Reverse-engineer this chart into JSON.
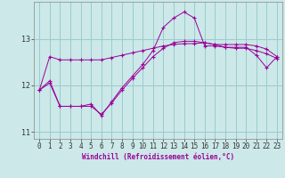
{
  "xlabel": "Windchill (Refroidissement éolien,°C)",
  "background_color": "#cce8e8",
  "grid_color": "#99cccc",
  "line_color": "#990099",
  "x_hours": [
    0,
    1,
    2,
    3,
    4,
    5,
    6,
    7,
    8,
    9,
    10,
    11,
    12,
    13,
    14,
    15,
    16,
    17,
    18,
    19,
    20,
    21,
    22,
    23
  ],
  "line1_y": [
    11.9,
    12.62,
    12.55,
    12.55,
    12.55,
    12.55,
    12.55,
    12.6,
    12.65,
    12.7,
    12.75,
    12.8,
    12.85,
    12.88,
    12.9,
    12.9,
    12.92,
    12.88,
    12.88,
    12.88,
    12.88,
    12.85,
    12.78,
    12.62
  ],
  "line2_y": [
    11.9,
    12.1,
    11.55,
    11.55,
    11.55,
    11.6,
    11.35,
    11.65,
    11.95,
    12.2,
    12.45,
    12.75,
    13.25,
    13.45,
    13.58,
    13.45,
    12.85,
    12.85,
    12.82,
    12.82,
    12.82,
    12.65,
    12.38,
    12.62
  ],
  "line3_y": [
    11.9,
    12.05,
    11.55,
    11.55,
    11.55,
    11.55,
    11.38,
    11.62,
    11.9,
    12.15,
    12.38,
    12.62,
    12.8,
    12.92,
    12.95,
    12.95,
    12.92,
    12.88,
    12.82,
    12.8,
    12.8,
    12.75,
    12.68,
    12.58
  ],
  "ylim": [
    10.85,
    13.8
  ],
  "yticks": [
    11,
    12,
    13
  ],
  "xlim": [
    -0.5,
    23.5
  ],
  "xticks": [
    0,
    1,
    2,
    3,
    4,
    5,
    6,
    7,
    8,
    9,
    10,
    11,
    12,
    13,
    14,
    15,
    16,
    17,
    18,
    19,
    20,
    21,
    22,
    23
  ],
  "tick_fontsize": 5.5,
  "xlabel_fontsize": 5.5
}
